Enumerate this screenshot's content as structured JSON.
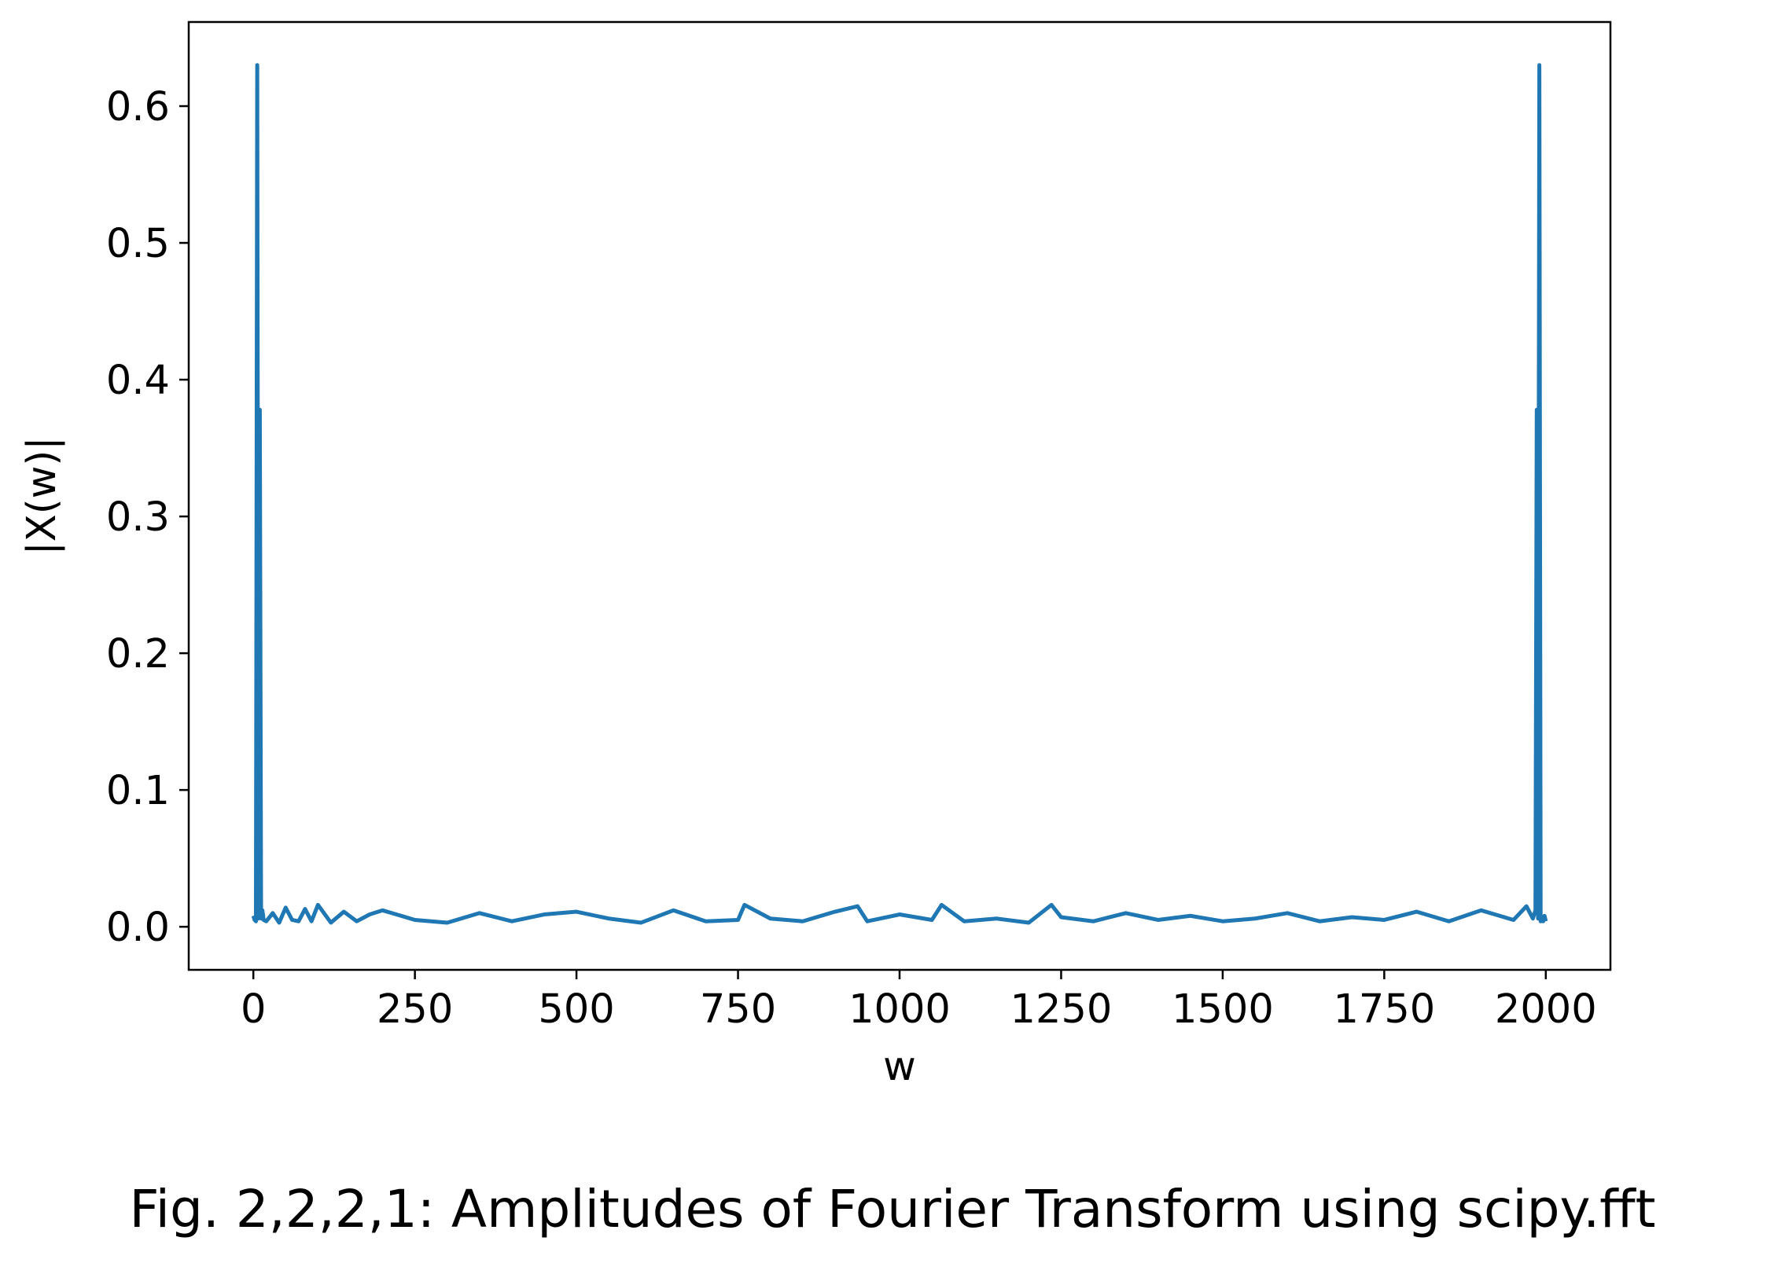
{
  "caption": "Fig. 2,2,2,1: Amplitudes of Fourier Transform using scipy.fft",
  "chart_data": {
    "type": "line",
    "title": "",
    "xlabel": "w",
    "ylabel": "|X(w)|",
    "xlim": [
      -100,
      2100
    ],
    "ylim": [
      -0.0315,
      0.6615
    ],
    "xticks": [
      0,
      250,
      500,
      750,
      1000,
      1250,
      1500,
      1750,
      2000
    ],
    "xtick_labels": [
      "0",
      "250",
      "500",
      "750",
      "1000",
      "1250",
      "1500",
      "1750",
      "2000"
    ],
    "yticks": [
      0.0,
      0.1,
      0.2,
      0.3,
      0.4,
      0.5,
      0.6
    ],
    "ytick_labels": [
      "0.0",
      "0.1",
      "0.2",
      "0.3",
      "0.4",
      "0.5",
      "0.6"
    ],
    "grid": false,
    "line_color": "#1f77b4",
    "series": [
      {
        "x": [
          0,
          2,
          4,
          6,
          8,
          10,
          12,
          14,
          16,
          20,
          30,
          40,
          50,
          60,
          70,
          80,
          90,
          100,
          120,
          140,
          160,
          180,
          200,
          250,
          300,
          350,
          400,
          450,
          500,
          550,
          600,
          650,
          700,
          750,
          760,
          800,
          850,
          900,
          935,
          950,
          1000,
          1050,
          1065,
          1100,
          1150,
          1200,
          1235,
          1250,
          1300,
          1350,
          1400,
          1450,
          1500,
          1550,
          1600,
          1650,
          1700,
          1750,
          1800,
          1850,
          1900,
          1950,
          1970,
          1980,
          1984,
          1986,
          1988,
          1990,
          1992,
          1994,
          1996,
          1998,
          2000
        ],
        "y": [
          0.008,
          0.005,
          0.004,
          0.63,
          0.006,
          0.378,
          0.006,
          0.012,
          0.005,
          0.004,
          0.01,
          0.003,
          0.014,
          0.005,
          0.004,
          0.013,
          0.004,
          0.016,
          0.003,
          0.011,
          0.004,
          0.009,
          0.012,
          0.005,
          0.003,
          0.01,
          0.004,
          0.009,
          0.011,
          0.006,
          0.003,
          0.012,
          0.004,
          0.005,
          0.016,
          0.006,
          0.004,
          0.011,
          0.015,
          0.004,
          0.009,
          0.005,
          0.016,
          0.004,
          0.006,
          0.003,
          0.016,
          0.007,
          0.004,
          0.01,
          0.005,
          0.008,
          0.004,
          0.006,
          0.01,
          0.004,
          0.007,
          0.005,
          0.011,
          0.004,
          0.012,
          0.005,
          0.015,
          0.006,
          0.012,
          0.378,
          0.006,
          0.63,
          0.004,
          0.005,
          0.004,
          0.008,
          0.004
        ]
      }
    ]
  }
}
